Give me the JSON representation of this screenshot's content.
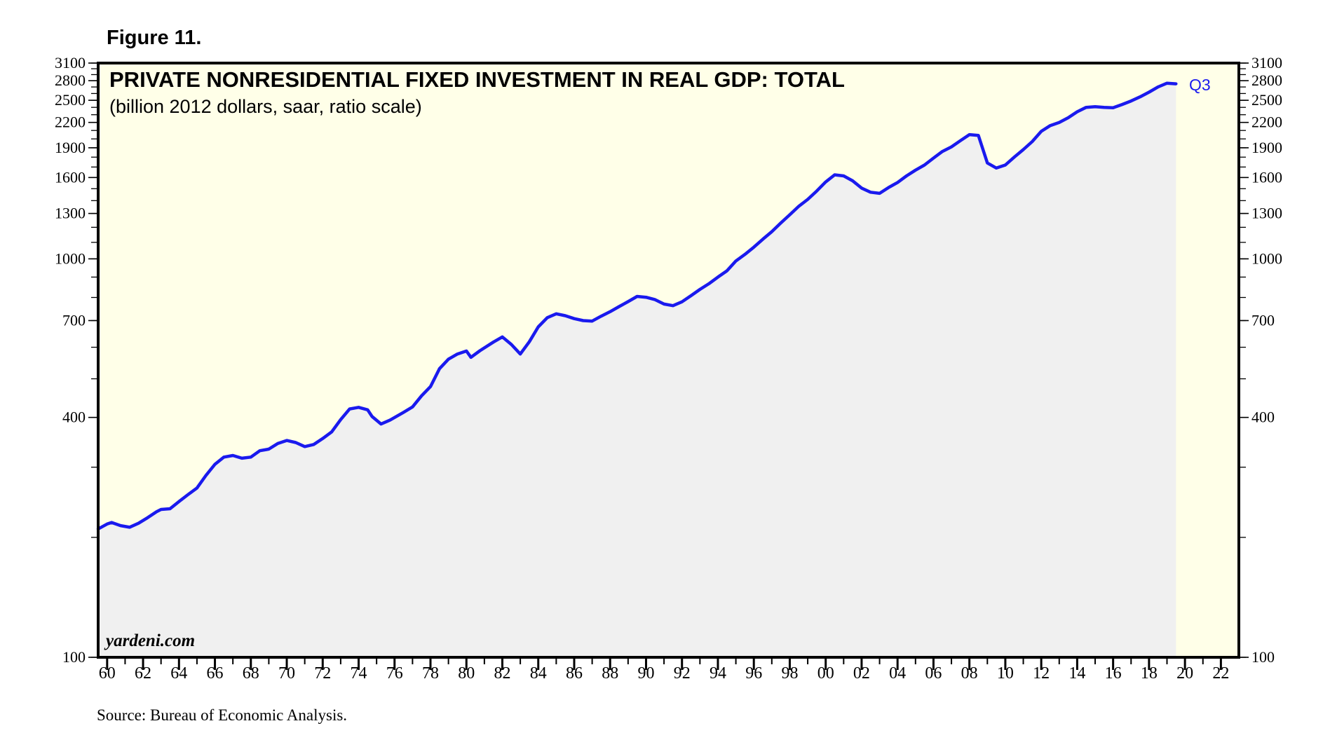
{
  "figure_label": "Figure 11.",
  "source": "Source: Bureau of Economic Analysis.",
  "colors": {
    "background_fill": "#ffffe8",
    "area_fill": "#f0f0f0",
    "line": "#1a1aee",
    "frame": "#000000"
  },
  "chart_data": {
    "type": "area",
    "title": "PRIVATE NONRESIDENTIAL FIXED INVESTMENT IN REAL GDP: TOTAL",
    "subtitle": "(billion 2012 dollars, saar, ratio scale)",
    "watermark": "yardeni.com",
    "end_label": "Q3",
    "y_scale": "log",
    "ylim": [
      100,
      3100
    ],
    "xlim": [
      1959.5,
      2023
    ],
    "y_ticks": [
      100,
      400,
      700,
      1000,
      1300,
      1600,
      1900,
      2200,
      2500,
      2800,
      3100
    ],
    "y_tick_labels": [
      "100",
      "400",
      "700",
      "1000",
      "1300",
      "1600",
      "1900",
      "2200",
      "2500",
      "2800",
      "3100"
    ],
    "x_tick_labels": [
      "60",
      "62",
      "64",
      "66",
      "68",
      "70",
      "72",
      "74",
      "76",
      "78",
      "80",
      "82",
      "84",
      "86",
      "88",
      "90",
      "92",
      "94",
      "96",
      "98",
      "00",
      "02",
      "04",
      "06",
      "08",
      "10",
      "12",
      "14",
      "16",
      "18",
      "20",
      "22"
    ],
    "x_tick_years": [
      1960,
      1962,
      1964,
      1966,
      1968,
      1970,
      1972,
      1974,
      1976,
      1978,
      1980,
      1982,
      1984,
      1986,
      1988,
      1990,
      1992,
      1994,
      1996,
      1998,
      2000,
      2002,
      2004,
      2006,
      2008,
      2010,
      2012,
      2014,
      2016,
      2018,
      2020,
      2022
    ],
    "series": [
      {
        "name": "Private nonresidential fixed investment",
        "x": [
          1959.5,
          1960.0,
          1960.25,
          1960.75,
          1961.25,
          1961.75,
          1962.25,
          1962.75,
          1963.0,
          1963.5,
          1964.0,
          1964.5,
          1965.0,
          1965.5,
          1966.0,
          1966.5,
          1967.0,
          1967.5,
          1968.0,
          1968.5,
          1969.0,
          1969.5,
          1970.0,
          1970.5,
          1971.0,
          1971.5,
          1972.0,
          1972.5,
          1973.0,
          1973.5,
          1974.0,
          1974.5,
          1974.75,
          1975.25,
          1975.75,
          1976.5,
          1977.0,
          1977.5,
          1978.0,
          1978.5,
          1979.0,
          1979.5,
          1980.0,
          1980.25,
          1980.75,
          1981.5,
          1982.0,
          1982.5,
          1983.0,
          1983.5,
          1984.0,
          1984.5,
          1985.0,
          1985.5,
          1986.0,
          1986.5,
          1987.0,
          1987.5,
          1988.0,
          1988.5,
          1989.0,
          1989.5,
          1990.0,
          1990.5,
          1991.0,
          1991.5,
          1992.0,
          1992.5,
          1993.0,
          1993.5,
          1994.0,
          1994.5,
          1995.0,
          1995.5,
          1996.0,
          1996.5,
          1997.0,
          1997.5,
          1998.0,
          1998.5,
          1999.0,
          1999.5,
          2000.0,
          2000.5,
          2001.0,
          2001.5,
          2002.0,
          2002.5,
          2003.0,
          2003.5,
          2004.0,
          2004.5,
          2005.0,
          2005.5,
          2006.0,
          2006.5,
          2007.0,
          2007.5,
          2008.0,
          2008.5,
          2009.0,
          2009.5,
          2010.0,
          2010.5,
          2011.0,
          2011.5,
          2012.0,
          2012.5,
          2013.0,
          2013.5,
          2014.0,
          2014.5,
          2015.0,
          2015.5,
          2016.0,
          2016.5,
          2017.0,
          2017.5,
          2018.0,
          2018.5,
          2019.0,
          2019.5
        ],
        "values": [
          210,
          216,
          218,
          214,
          212,
          217,
          224,
          232,
          235,
          236,
          246,
          256,
          266,
          286,
          305,
          318,
          321,
          316,
          318,
          330,
          333,
          344,
          350,
          346,
          338,
          342,
          354,
          368,
          395,
          420,
          424,
          418,
          402,
          385,
          394,
          412,
          425,
          453,
          478,
          530,
          560,
          577,
          587,
          566,
          588,
          618,
          637,
          610,
          577,
          619,
          675,
          712,
          728,
          720,
          708,
          700,
          698,
          718,
          737,
          759,
          781,
          805,
          801,
          790,
          770,
          763,
          780,
          808,
          838,
          866,
          900,
          933,
          988,
          1026,
          1070,
          1120,
          1170,
          1230,
          1290,
          1355,
          1410,
          1480,
          1560,
          1625,
          1615,
          1570,
          1505,
          1470,
          1460,
          1510,
          1555,
          1615,
          1670,
          1720,
          1790,
          1860,
          1910,
          1980,
          2050,
          2040,
          1740,
          1690,
          1720,
          1800,
          1880,
          1970,
          2090,
          2160,
          2200,
          2260,
          2340,
          2400,
          2410,
          2400,
          2395,
          2440,
          2490,
          2550,
          2620,
          2700,
          2760,
          2750
        ]
      }
    ]
  }
}
